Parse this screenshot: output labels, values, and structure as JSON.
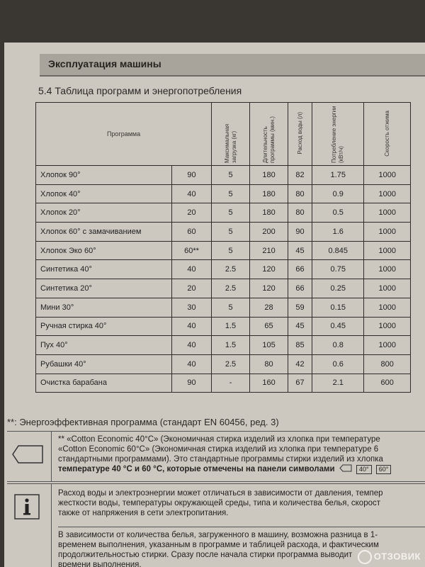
{
  "section_title": "Эксплуатация машины",
  "subheading": "5.4 Таблица программ и энергопотребления",
  "table": {
    "header": {
      "program": "Программа",
      "max_load": "Максимальная загрузка (кг)",
      "duration": "Длительность программы (мин.)",
      "water": "Расход воды (л)",
      "energy": "Потребление энергии (кВт/ч)",
      "spin": "Скорость отжима"
    },
    "rows": [
      {
        "name": "Хлопок 90°",
        "temp": "90",
        "load": "5",
        "duration": "180",
        "water": "82",
        "energy": "1.75",
        "spin": "1000"
      },
      {
        "name": "Хлопок 40°",
        "temp": "40",
        "load": "5",
        "duration": "180",
        "water": "80",
        "energy": "0.9",
        "spin": "1000"
      },
      {
        "name": "Хлопок 20°",
        "temp": "20",
        "load": "5",
        "duration": "180",
        "water": "80",
        "energy": "0.5",
        "spin": "1000"
      },
      {
        "name": "Хлопок 60° с замачиванием",
        "temp": "60",
        "load": "5",
        "duration": "200",
        "water": "90",
        "energy": "1.6",
        "spin": "1000"
      },
      {
        "name": "Хлопок Эко 60°",
        "temp": "60**",
        "load": "5",
        "duration": "210",
        "water": "45",
        "energy": "0.845",
        "spin": "1000"
      },
      {
        "name": "Синтетика 40°",
        "temp": "40",
        "load": "2.5",
        "duration": "120",
        "water": "66",
        "energy": "0.75",
        "spin": "1000"
      },
      {
        "name": "Синтетика 20°",
        "temp": "20",
        "load": "2.5",
        "duration": "120",
        "water": "66",
        "energy": "0.25",
        "spin": "1000"
      },
      {
        "name": "Мини 30°",
        "temp": "30",
        "load": "5",
        "duration": "28",
        "water": "59",
        "energy": "0.15",
        "spin": "1000"
      },
      {
        "name": "Ручная стирка 40°",
        "temp": "40",
        "load": "1.5",
        "duration": "65",
        "water": "45",
        "energy": "0.45",
        "spin": "1000"
      },
      {
        "name": "Пух 40°",
        "temp": "40",
        "load": "1.5",
        "duration": "105",
        "water": "85",
        "energy": "0.8",
        "spin": "1000"
      },
      {
        "name": "Рубашки 40°",
        "temp": "40",
        "load": "2.5",
        "duration": "80",
        "water": "42",
        "energy": "0.6",
        "spin": "800"
      },
      {
        "name": "Очистка барабана",
        "temp": "90",
        "load": "-",
        "duration": "160",
        "water": "67",
        "energy": "2.1",
        "spin": "600"
      }
    ]
  },
  "footnote": "**: Энергоэффективная программа (стандарт EN 60456, ред. 3)",
  "note": {
    "line1": "** «Cotton Economic 40°C» (Экономичная стирка изделий из хлопка при температуре",
    "line2": "«Cotton Economic 60°C» (Экономичная стирка изделий из хлопка при температуре 6",
    "line3": "стандартными программами). Это стандартные программы стирки изделий из хлопка",
    "line4": "температуре 40 °С и 60 °С, которые отмечены на панели символами",
    "sym1": "40°",
    "sym2": "60°"
  },
  "info": {
    "p1_l1": "Расход воды и электроэнергии может отличаться в зависимости от давления, темпер",
    "p1_l2": "жесткости воды, температуры окружающей среды, типа и количества белья, скорост",
    "p1_l3": "также от напряжения в сети электропитания.",
    "p2_l1": "В зависимости от количества белья, загруженного в машину, возможна разница в 1-",
    "p2_l2": "временем выполнения, указанным в программе и таблицей расхода, и фактическим",
    "p2_l3": "продолжительностью стирки. Сразу после начала стирки программа выводит",
    "p2_l4": "времени выполнения."
  },
  "watermark": "ОТЗОВИК"
}
